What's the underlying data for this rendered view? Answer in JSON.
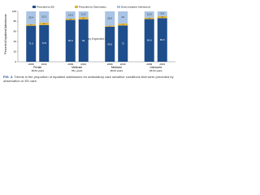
{
  "chart_data": {
    "type": "bar",
    "stacked": true,
    "y_label": "Percent of Inpatient Admissions",
    "legend_title": "Primary Expected Payer",
    "categories": [
      "2009",
      "2013",
      "2009",
      "2013",
      "2009",
      "2013",
      "2009",
      "2013"
    ],
    "groups": [
      {
        "name": "Private",
        "sub": "18-64 years"
      },
      {
        "name": "Medicare",
        "sub": "65+ years"
      },
      {
        "name": "Medicaid",
        "sub": "18-64 years"
      },
      {
        "name": "Uninsured",
        "sub": "18-64 years"
      }
    ],
    "series": [
      {
        "name": "Preceded by ED",
        "color": "#1f4e8c",
        "values": [
          71.5,
          72.8,
          82.9,
          84.0,
          69.5,
          72.0,
          84.6,
          86.6
        ]
      },
      {
        "name": "Preceded by Observation",
        "color": "#e0b43c",
        "values": [
          3.1,
          4.9,
          2.6,
          4.5,
          2.2,
          4.0,
          2.9,
          3.9
        ]
      },
      {
        "name": "Direct Inpatient Admissions",
        "color": "#a9c4e4",
        "values": [
          25.4,
          22.3,
          14.5,
          11.5,
          28.3,
          24.0,
          12.5,
          9.5
        ]
      }
    ],
    "ylim": [
      0,
      100
    ],
    "yticks": [
      0,
      20,
      40,
      60,
      80,
      100
    ],
    "grid": false,
    "caption_label": "FIG. 3.",
    "caption": "Trends in the proportion of inpatient admissions for ambulatory care sensitive conditions that were preceded by observation or ED care."
  }
}
